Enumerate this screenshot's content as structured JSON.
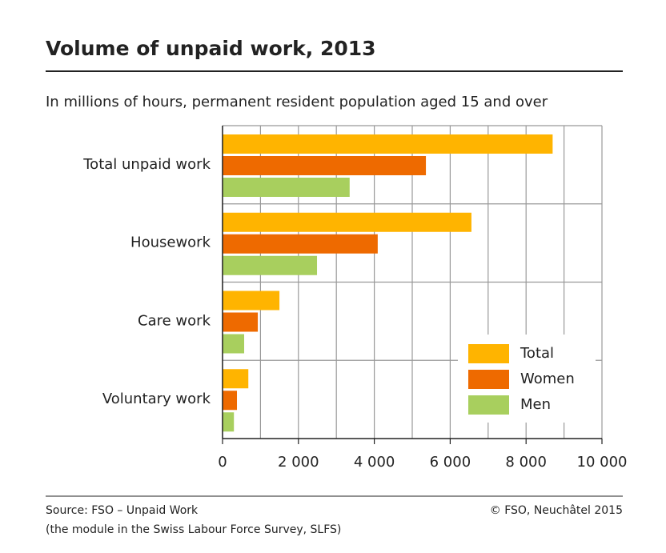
{
  "chart_data": {
    "type": "hbar",
    "title": "Volume of unpaid work, 2013",
    "subtitle": "In millions of hours, permanent resident population aged 15 and over",
    "categories": [
      "Total unpaid work",
      "Housework",
      "Care work",
      "Voluntary work"
    ],
    "series": [
      {
        "name": "Total",
        "color": "#ffb400",
        "values": [
          8700,
          6560,
          1500,
          680
        ]
      },
      {
        "name": "Women",
        "color": "#ee6a00",
        "values": [
          5360,
          4090,
          930,
          380
        ]
      },
      {
        "name": "Men",
        "color": "#a8cf5e",
        "values": [
          3350,
          2490,
          570,
          300
        ]
      }
    ],
    "xlim": [
      0,
      10000
    ],
    "xticks": [
      0,
      {
        "value": 2000,
        "label": "2 000"
      },
      {
        "value": 4000,
        "label": "4 000"
      },
      {
        "value": 6000,
        "label": "6 000"
      },
      {
        "value": 8000,
        "label": "8 000"
      },
      {
        "value": 10000,
        "label": "10 000"
      }
    ],
    "minor_xticks": [
      1000,
      3000,
      5000,
      7000,
      9000
    ],
    "grid": true,
    "legend": "lower right",
    "source": "Source: FSO – Unpaid Work",
    "source_note": "(the module in the Swiss Labour Force Survey, SLFS)",
    "copyright": "© FSO, Neuchâtel 2015"
  }
}
